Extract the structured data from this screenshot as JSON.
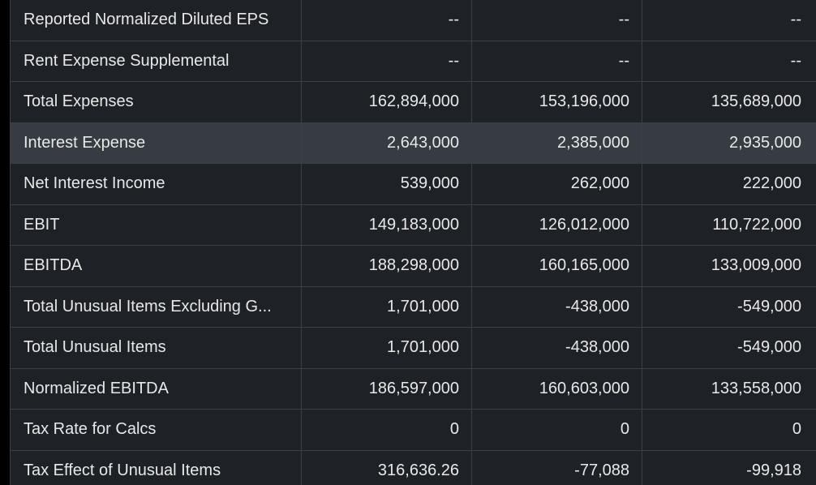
{
  "table": {
    "rows": [
      {
        "label": "Reported Normalized Diluted EPS",
        "values": [
          "--",
          "--",
          "--"
        ]
      },
      {
        "label": "Rent Expense Supplemental",
        "values": [
          "--",
          "--",
          "--"
        ]
      },
      {
        "label": "Total Expenses",
        "values": [
          "162,894,000",
          "153,196,000",
          "135,689,000"
        ]
      },
      {
        "label": "Interest Expense",
        "values": [
          "2,643,000",
          "2,385,000",
          "2,935,000"
        ]
      },
      {
        "label": "Net Interest Income",
        "values": [
          "539,000",
          "262,000",
          "222,000"
        ]
      },
      {
        "label": "EBIT",
        "values": [
          "149,183,000",
          "126,012,000",
          "110,722,000"
        ]
      },
      {
        "label": "EBITDA",
        "values": [
          "188,298,000",
          "160,165,000",
          "133,009,000"
        ]
      },
      {
        "label": "Total Unusual Items Excluding G...",
        "values": [
          "1,701,000",
          "-438,000",
          "-549,000"
        ]
      },
      {
        "label": "Total Unusual Items",
        "values": [
          "1,701,000",
          "-438,000",
          "-549,000"
        ]
      },
      {
        "label": "Normalized EBITDA",
        "values": [
          "186,597,000",
          "160,603,000",
          "133,558,000"
        ]
      },
      {
        "label": "Tax Rate for Calcs",
        "values": [
          "0",
          "0",
          "0"
        ]
      },
      {
        "label": "Tax Effect of Unusual Items",
        "values": [
          "316,636.26",
          "-77,088",
          "-99,918"
        ]
      }
    ]
  },
  "colors": {
    "background": "#1e2227",
    "highlight_row": "#363c42",
    "text": "#e8e8e8",
    "grid": "#3a3f45"
  }
}
